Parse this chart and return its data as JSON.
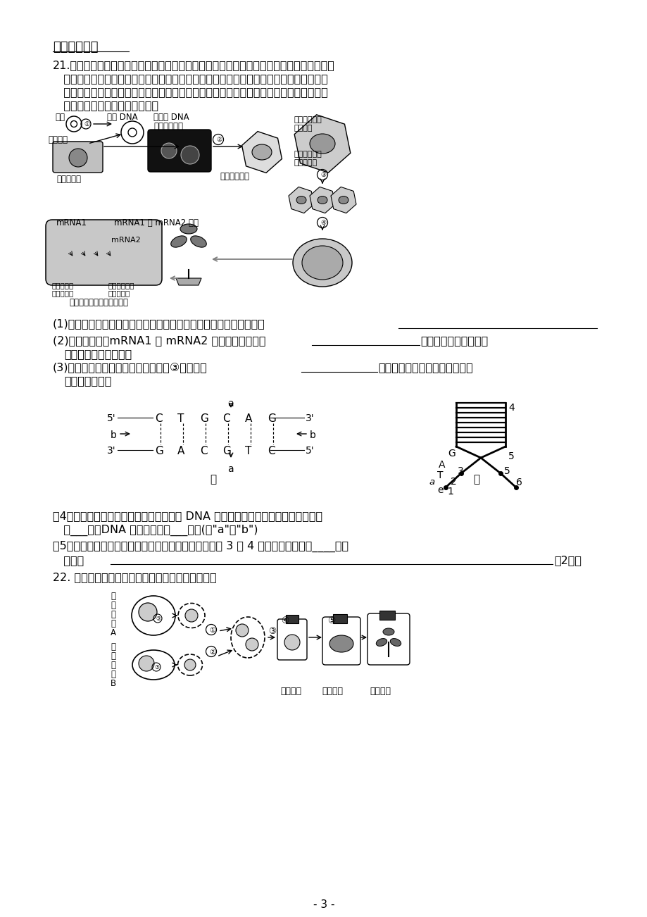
{
  "background_color": "#ffffff",
  "page_width": 9.2,
  "page_height": 13.02,
  "dpi": 100,
  "section_title": "二、非选择题",
  "q21_text_line1": "21.番茄营养丰富，是人们喜爱的一类果蔬。但普通番茄细胞中含有多聚半乳糖醛酸酶基因，",
  "q21_text_line2": "   控制细胞产生多聚半乳糖醛酸酶，该酶能破坏细胞壁，使番茄软化，不耐贮藏。为满足人",
  "q21_text_line3": "   们的生产生活需要，科学家们通过基因工程技术，培育出了抗软化、保鲜时间长的番茄新",
  "q21_text_line4": "   品种。操作流程如图，请回答：",
  "q21_sub1": "(1)在番茄新品种的培育过程中，将目的基因导入受体细胞的方法叫做",
  "q21_sub2a": "(2)从图中可见，mRNA1 和 mRNA2 的结合直接导致了",
  "q21_sub2b": "无法合成，最终使番茄",
  "q21_sub2c": "   获得了抗软化的性状。",
  "q21_sub3a": "(3)普通番茄细胞导入目的基因后，经③过程形成",
  "q21_sub3b": "，然后诱导出试管苗，进一步培",
  "q21_sub3c": "   养成正常植株。",
  "q21_sub4a": "（4）如图甲，获得目的基因后，构建重组 DNA 分子所用的限制性内切酶作用于图中",
  "q21_sub4b": "   的___处，DNA 连接酶作用于___处。(填\"a\"或\"b\")",
  "q21_sub5a": "（5）如图乙是该目的基因表达过程中的一个阶段，图中 3 和 4 的核苷酸相同否？____，说",
  "q21_sub5b": "   明理由",
  "q21_sub5c": "（2分）",
  "q22_text": "22. 下图是植物细胞杂交过程示意图，请据图回答：",
  "page_number": "- 3 -",
  "fs_body": 11.5,
  "fs_small": 9.5,
  "fs_section": 13
}
